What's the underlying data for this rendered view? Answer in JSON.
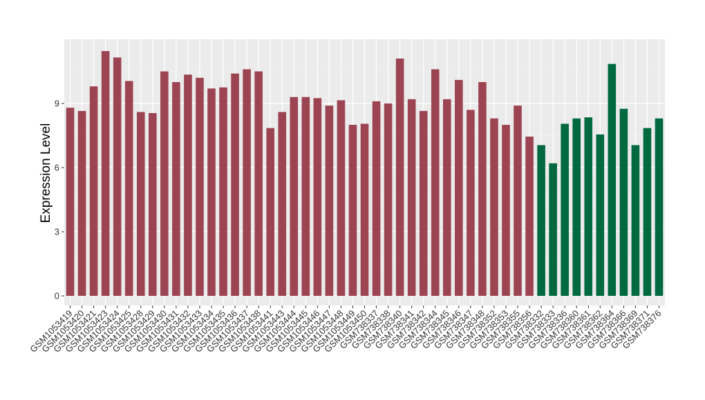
{
  "chart_data": {
    "type": "bar",
    "ylabel": "Expression Level",
    "xlabel": "",
    "ylim": [
      -0.45,
      12.0
    ],
    "yticks": [
      0,
      3,
      6,
      9
    ],
    "grid": true,
    "legend": "none",
    "background_color": "#ebebeb",
    "group_colors": [
      "#9c4452",
      "#006940"
    ],
    "categories": [
      "GSM1053419",
      "GSM1053420",
      "GSM1053421",
      "GSM1053423",
      "GSM1053424",
      "GSM1053425",
      "GSM1053428",
      "GSM1053429",
      "GSM1053430",
      "GSM1053431",
      "GSM1053432",
      "GSM1053433",
      "GSM1053434",
      "GSM1053435",
      "GSM1053436",
      "GSM1053437",
      "GSM1053438",
      "GSM1053441",
      "GSM1053443",
      "GSM1053444",
      "GSM1053445",
      "GSM1053446",
      "GSM1053447",
      "GSM1053448",
      "GSM1053449",
      "GSM1053450",
      "GSM738337",
      "GSM738338",
      "GSM738340",
      "GSM738341",
      "GSM738342",
      "GSM738344",
      "GSM738345",
      "GSM738346",
      "GSM738347",
      "GSM738348",
      "GSM738352",
      "GSM738353",
      "GSM738355",
      "GSM738356",
      "GSM738332",
      "GSM738333",
      "GSM738336",
      "GSM738360",
      "GSM738361",
      "GSM738362",
      "GSM738364",
      "GSM738366",
      "GSM738369",
      "GSM738371",
      "GSM738376"
    ],
    "values": [
      8.8,
      8.65,
      9.8,
      11.45,
      11.15,
      10.05,
      8.6,
      8.55,
      10.5,
      10.0,
      10.35,
      10.2,
      9.7,
      9.75,
      10.4,
      10.6,
      10.5,
      7.85,
      8.6,
      9.3,
      9.3,
      9.25,
      8.9,
      9.15,
      8.0,
      8.05,
      9.1,
      9.0,
      11.1,
      9.2,
      8.65,
      10.6,
      9.2,
      10.1,
      8.7,
      10.0,
      8.3,
      8.0,
      8.9,
      7.45,
      7.05,
      6.2,
      8.05,
      8.3,
      8.35,
      7.55,
      10.85,
      8.75,
      7.05,
      7.85,
      8.3
    ],
    "groups": [
      0,
      0,
      0,
      0,
      0,
      0,
      0,
      0,
      0,
      0,
      0,
      0,
      0,
      0,
      0,
      0,
      0,
      0,
      0,
      0,
      0,
      0,
      0,
      0,
      0,
      0,
      0,
      0,
      0,
      0,
      0,
      0,
      0,
      0,
      0,
      0,
      0,
      0,
      0,
      0,
      1,
      1,
      1,
      1,
      1,
      1,
      1,
      1,
      1,
      1,
      1
    ]
  }
}
